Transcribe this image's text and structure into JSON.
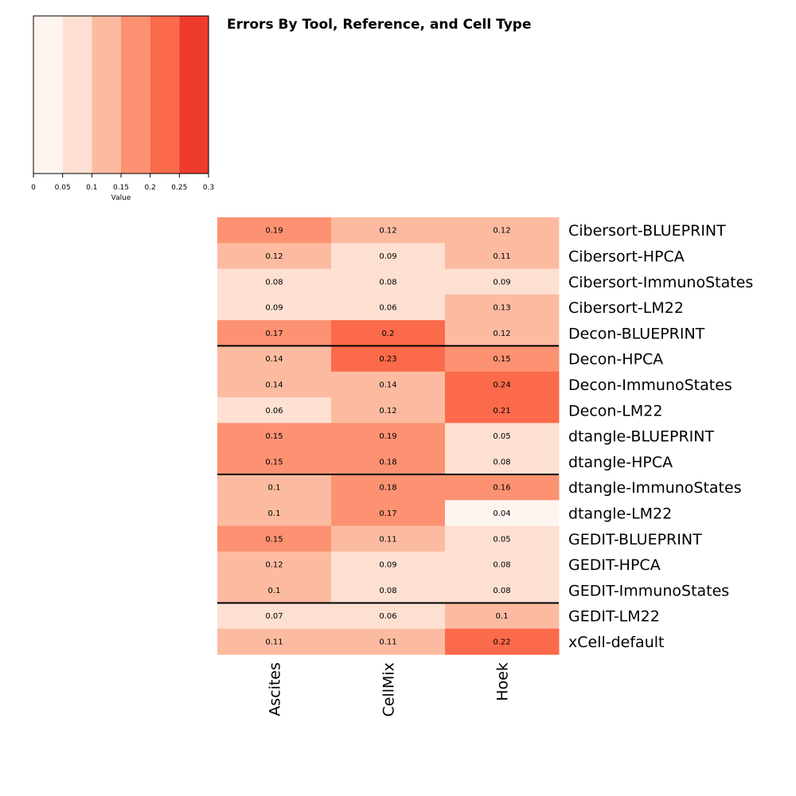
{
  "chart_data": {
    "type": "heatmap",
    "title": "Errors By Tool, Reference, and Cell Type",
    "columns": [
      "Ascites",
      "CellMix",
      "Hoek"
    ],
    "rows": [
      "Cibersort-BLUEPRINT",
      "Cibersort-HPCA",
      "Cibersort-ImmunoStates",
      "Cibersort-LM22",
      "Decon-BLUEPRINT",
      "Decon-HPCA",
      "Decon-ImmunoStates",
      "Decon-LM22",
      "dtangle-BLUEPRINT",
      "dtangle-HPCA",
      "dtangle-ImmunoStates",
      "dtangle-LM22",
      "GEDIT-BLUEPRINT",
      "GEDIT-HPCA",
      "GEDIT-ImmunoStates",
      "GEDIT-LM22",
      "xCell-default"
    ],
    "values": [
      [
        0.19,
        0.12,
        0.12
      ],
      [
        0.12,
        0.09,
        0.11
      ],
      [
        0.08,
        0.08,
        0.09
      ],
      [
        0.09,
        0.06,
        0.13
      ],
      [
        0.17,
        0.2,
        0.12
      ],
      [
        0.14,
        0.23,
        0.15
      ],
      [
        0.14,
        0.14,
        0.24
      ],
      [
        0.06,
        0.12,
        0.21
      ],
      [
        0.15,
        0.19,
        0.05
      ],
      [
        0.15,
        0.18,
        0.08
      ],
      [
        0.1,
        0.18,
        0.16
      ],
      [
        0.1,
        0.17,
        0.04
      ],
      [
        0.15,
        0.11,
        0.05
      ],
      [
        0.12,
        0.09,
        0.08
      ],
      [
        0.1,
        0.08,
        0.08
      ],
      [
        0.07,
        0.06,
        0.1
      ],
      [
        0.11,
        0.11,
        0.22
      ]
    ],
    "row_separators_after": [
      4,
      9,
      14
    ],
    "color_key": {
      "title": "Value",
      "breaks": [
        0,
        0.05,
        0.1,
        0.15,
        0.2,
        0.25,
        0.3
      ],
      "tick_labels": [
        "0",
        "0.05",
        "0.1",
        "0.15",
        "0.2",
        "0.25",
        "0.3"
      ],
      "colors": [
        "#FFF5F0",
        "#FEE0D2",
        "#FCBBA1",
        "#FC9272",
        "#FB6A4A",
        "#EF3B2C"
      ]
    }
  }
}
